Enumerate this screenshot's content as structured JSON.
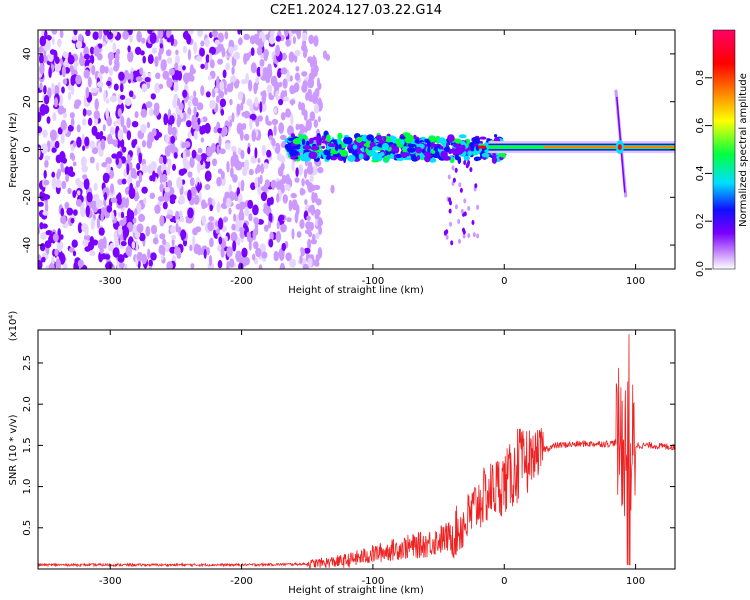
{
  "title": "C2E1.2024.127.03.22.G14",
  "chart_data": [
    {
      "type": "heatmap",
      "xlabel": "Height of straight line (km)",
      "ylabel": "Frequency (Hz)",
      "xlim": [
        -355,
        130
      ],
      "ylim": [
        -50,
        50
      ],
      "xticks": [
        -300,
        -200,
        -100,
        0,
        100
      ],
      "yticks": [
        -40,
        -20,
        0,
        20,
        40
      ],
      "colorbar": {
        "label": "Normalized spectral amplitude",
        "range": [
          0,
          1
        ],
        "ticks": [
          "0.0",
          "0.2",
          "0.4",
          "0.6",
          "0.8"
        ]
      },
      "colors": [
        "#ffffff",
        "#cc99ff",
        "#7a00ff",
        "#1010ff",
        "#00e0ff",
        "#00ff40",
        "#ffff00",
        "#ff8000",
        "#ff0000",
        "#ff0066"
      ],
      "features": {
        "noise_region_x": [
          -355,
          -140
        ],
        "carrier_frequency_hz": 1,
        "carrier_start_x": -165,
        "spike_x": 88
      }
    },
    {
      "type": "line",
      "xlabel": "Height of straight line (km)",
      "ylabel": "SNR (10 * v/v)",
      "y_multiplier": "(x10⁴)",
      "xlim": [
        -355,
        130
      ],
      "ylim": [
        0,
        2.9
      ],
      "xticks": [
        -300,
        -200,
        -100,
        0,
        100
      ],
      "yticks": [
        "0.5",
        "1.0",
        "1.5",
        "2.0",
        "2.5"
      ],
      "color": "#ee2222",
      "x": [
        -355,
        -300,
        -250,
        -200,
        -150,
        -120,
        -100,
        -80,
        -60,
        -40,
        -30,
        -20,
        -10,
        0,
        10,
        20,
        30,
        40,
        60,
        80,
        90,
        95,
        100,
        110,
        130
      ],
      "y": [
        0.05,
        0.05,
        0.05,
        0.05,
        0.06,
        0.1,
        0.18,
        0.25,
        0.3,
        0.4,
        0.55,
        0.8,
        0.95,
        1.05,
        1.2,
        1.35,
        1.45,
        1.5,
        1.52,
        1.52,
        1.55,
        1.4,
        1.5,
        1.5,
        1.48
      ]
    }
  ]
}
